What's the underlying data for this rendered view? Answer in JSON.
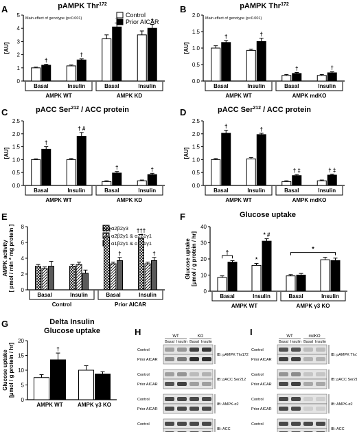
{
  "legend_AB": {
    "items": [
      {
        "label": "Control",
        "fill": "#ffffff"
      },
      {
        "label": "Prior AICAR",
        "fill": "#000000"
      }
    ]
  },
  "legend_E": {
    "items": [
      {
        "label": "α2β2γ3",
        "fill": "#ffffff",
        "pattern": "crosshatch"
      },
      {
        "label": "α2β2γ1 & α2β1γ1",
        "fill": "#ffffff",
        "pattern": "diagonal"
      },
      {
        "label": "α1β2γ1 & α1β1γ1",
        "fill": "#5a5a5a"
      }
    ]
  },
  "chart_data": [
    {
      "panel": "A",
      "type": "bar",
      "title": "pAMPK Thr172",
      "note": "Main effect of genotype (p<0.001)",
      "ylabel": "[AU]",
      "ylim": [
        0,
        5
      ],
      "yticks": [
        0,
        1,
        2,
        3,
        4,
        5
      ],
      "groups": [
        "Basal",
        "Insulin",
        "Basal",
        "Insulin"
      ],
      "supergroups": [
        {
          "label": "AMPK WT",
          "span": [
            0,
            1
          ]
        },
        {
          "label": "AMPK KD",
          "span": [
            2,
            3
          ]
        }
      ],
      "series": [
        {
          "name": "Control",
          "values": [
            1.0,
            1.15,
            3.2,
            3.5
          ],
          "errors": [
            0.06,
            0.07,
            0.3,
            0.3
          ]
        },
        {
          "name": "Prior AICAR",
          "values": [
            1.2,
            1.6,
            4.1,
            4.0
          ],
          "errors": [
            0.07,
            0.08,
            0.3,
            0.3
          ]
        }
      ],
      "annotations": [
        {
          "series": 1,
          "group": 0,
          "text": "†"
        },
        {
          "series": 1,
          "group": 1,
          "text": "†"
        },
        {
          "series": 1,
          "group": 2,
          "text": "†"
        },
        {
          "series": 1,
          "group": 3,
          "text": "†"
        }
      ]
    },
    {
      "panel": "B",
      "type": "bar",
      "title": "pAMPK Thr172",
      "note": "Main effect of genotype (p<0.001)",
      "ylabel": "[AU]",
      "ylim": [
        0,
        2.0
      ],
      "yticks": [
        0.0,
        0.5,
        1.0,
        1.5,
        2.0
      ],
      "groups": [
        "Basal",
        "Insulin",
        "Basal",
        "Insulin"
      ],
      "supergroups": [
        {
          "label": "AMPK WT",
          "span": [
            0,
            1
          ]
        },
        {
          "label": "AMPK mdKO",
          "span": [
            2,
            3
          ]
        }
      ],
      "series": [
        {
          "name": "Control",
          "values": [
            1.0,
            0.93,
            0.17,
            0.17
          ],
          "errors": [
            0.07,
            0.04,
            0.03,
            0.03
          ]
        },
        {
          "name": "Prior AICAR",
          "values": [
            1.17,
            1.2,
            0.23,
            0.25
          ],
          "errors": [
            0.06,
            0.1,
            0.03,
            0.03
          ]
        }
      ],
      "annotations": [
        {
          "series": 1,
          "group": 0,
          "text": "†"
        },
        {
          "series": 1,
          "group": 1,
          "text": "†"
        },
        {
          "series": 1,
          "group": 2,
          "text": "†"
        },
        {
          "series": 1,
          "group": 3,
          "text": "†"
        }
      ]
    },
    {
      "panel": "C",
      "type": "bar",
      "title": "pACC Ser212 / ACC protein",
      "ylabel": "[AU]",
      "ylim": [
        0,
        2.5
      ],
      "yticks": [
        0.0,
        0.5,
        1.0,
        1.5,
        2.0,
        2.5
      ],
      "groups": [
        "Basal",
        "Insulin",
        "Basal",
        "Insulin"
      ],
      "supergroups": [
        {
          "label": "AMPK WT",
          "span": [
            0,
            1
          ]
        },
        {
          "label": "AMPK KD",
          "span": [
            2,
            3
          ]
        }
      ],
      "series": [
        {
          "name": "Control",
          "values": [
            1.0,
            1.0,
            0.15,
            0.18
          ],
          "errors": [
            0.03,
            0.04,
            0.03,
            0.03
          ]
        },
        {
          "name": "Prior AICAR",
          "values": [
            1.4,
            1.9,
            0.48,
            0.42
          ],
          "errors": [
            0.1,
            0.15,
            0.06,
            0.05
          ]
        }
      ],
      "annotations": [
        {
          "series": 1,
          "group": 0,
          "text": "†"
        },
        {
          "series": 1,
          "group": 1,
          "text": "† #"
        },
        {
          "series": 1,
          "group": 2,
          "text": "†"
        },
        {
          "series": 1,
          "group": 3,
          "text": "†"
        }
      ]
    },
    {
      "panel": "D",
      "type": "bar",
      "title": "pACC Ser212 / ACC protein",
      "ylabel": "[AU]",
      "ylim": [
        0,
        2.5
      ],
      "yticks": [
        0.0,
        0.5,
        1.0,
        1.5,
        2.0,
        2.5
      ],
      "groups": [
        "Basal",
        "Insulin",
        "Basal",
        "Insulin"
      ],
      "supergroups": [
        {
          "label": "AMPK WT",
          "span": [
            0,
            1
          ]
        },
        {
          "label": "AMPK mdKO",
          "span": [
            2,
            3
          ]
        }
      ],
      "series": [
        {
          "name": "Control",
          "values": [
            1.0,
            1.03,
            0.15,
            0.18
          ],
          "errors": [
            0.04,
            0.05,
            0.03,
            0.03
          ]
        },
        {
          "name": "Prior AICAR",
          "values": [
            2.02,
            1.97,
            0.38,
            0.4
          ],
          "errors": [
            0.12,
            0.05,
            0.04,
            0.04
          ]
        }
      ],
      "annotations": [
        {
          "series": 1,
          "group": 0,
          "text": "†"
        },
        {
          "series": 1,
          "group": 1,
          "text": "†"
        },
        {
          "series": 1,
          "group": 2,
          "text": "† ‡"
        },
        {
          "series": 1,
          "group": 3,
          "text": "† ‡"
        }
      ]
    },
    {
      "panel": "E",
      "type": "bar",
      "ylabel": "AMPK activity [ pmol / min * mg protein ]",
      "ylim": [
        0,
        8
      ],
      "yticks": [
        0,
        2,
        4,
        6,
        8
      ],
      "groups": [
        "Basal",
        "Insulin",
        "Basal",
        "Insulin"
      ],
      "supergroups": [
        {
          "label": "Control",
          "span": [
            0,
            1
          ]
        },
        {
          "label": "Prior AICAR",
          "span": [
            2,
            3
          ]
        }
      ],
      "series": [
        {
          "name": "α2β2γ3",
          "values": [
            3.0,
            3.0,
            6.7,
            6.5
          ],
          "errors": [
            0.2,
            0.2,
            0.45,
            0.5
          ]
        },
        {
          "name": "α2β2γ1 & α2β1γ1",
          "values": [
            2.7,
            3.2,
            3.3,
            3.3
          ],
          "errors": [
            0.2,
            0.3,
            0.2,
            0.2
          ]
        },
        {
          "name": "α1β2γ1 & α1β1γ1",
          "values": [
            3.0,
            2.1,
            3.7,
            3.7
          ],
          "errors": [
            0.6,
            0.4,
            0.4,
            0.4
          ]
        }
      ],
      "annotations": [
        {
          "series": 0,
          "group": 2,
          "text": "†††"
        },
        {
          "series": 0,
          "group": 3,
          "text": "†††"
        },
        {
          "series": 2,
          "group": 2,
          "text": "†"
        },
        {
          "series": 2,
          "group": 3,
          "text": "†"
        }
      ]
    },
    {
      "panel": "F",
      "type": "bar",
      "title": "Glucose uptake",
      "ylabel": "Glucose uptake [μmol / g protein / hr]",
      "ylim": [
        0,
        40
      ],
      "yticks": [
        0,
        10,
        20,
        30,
        40
      ],
      "groups": [
        "Basal",
        "Insulin",
        "Basal",
        "Insulin"
      ],
      "supergroups": [
        {
          "label": "AMPK WT",
          "span": [
            0,
            1
          ]
        },
        {
          "label": "AMPK γ3 KO",
          "span": [
            2,
            3
          ]
        }
      ],
      "series": [
        {
          "name": "Control",
          "values": [
            8.5,
            16.0,
            9.5,
            19.5
          ],
          "errors": [
            1.0,
            1.2,
            0.8,
            1.5
          ]
        },
        {
          "name": "Prior AICAR",
          "values": [
            18.0,
            31.0,
            10.0,
            19.0
          ],
          "errors": [
            1.0,
            1.5,
            1.0,
            1.5
          ]
        }
      ],
      "annotations": [
        {
          "series": 0,
          "group": 1,
          "text": "*"
        },
        {
          "series": 1,
          "group": 1,
          "text": "* #"
        }
      ],
      "brackets": [
        {
          "from": [
            0,
            0
          ],
          "to": [
            1,
            0
          ],
          "y": 22,
          "text": "†"
        },
        {
          "from": [
            0,
            2
          ],
          "to": [
            1,
            3
          ],
          "y": 24,
          "text": "*"
        }
      ]
    },
    {
      "panel": "G",
      "type": "bar",
      "title": "Delta Insulin",
      "subtitle": "Glucose uptake",
      "ylabel": "Glucose uptake [μmol / g protein / hr]",
      "ylim": [
        0,
        20
      ],
      "yticks": [
        0,
        5,
        10,
        15,
        20
      ],
      "groups": [
        "AMPK WT",
        "AMPK γ3 KO"
      ],
      "series": [
        {
          "name": "Control",
          "values": [
            7.5,
            10.0
          ],
          "errors": [
            1.0,
            1.5
          ]
        },
        {
          "name": "Prior AICAR",
          "values": [
            13.5,
            8.7
          ],
          "errors": [
            2.3,
            0.8
          ]
        }
      ],
      "annotations": [
        {
          "series": 1,
          "group": 0,
          "text": "†"
        }
      ]
    }
  ],
  "blots_H": {
    "header_groups": [
      "WT",
      "KO"
    ],
    "header_cols": [
      "Basal",
      "Insulin",
      "Basal",
      "Insulin"
    ],
    "rows": [
      {
        "conds": [
          "Control",
          "Prior AICAR"
        ],
        "label": "IB: pAMPK Thr172",
        "intens": [
          [
            0.35,
            0.4,
            0.85,
            0.9
          ],
          [
            0.45,
            0.55,
            0.95,
            0.95
          ]
        ]
      },
      {
        "conds": [
          "Control",
          "Prior AICAR"
        ],
        "label": "IB: pACC Ser212",
        "intens": [
          [
            0.35,
            0.4,
            0.2,
            0.25
          ],
          [
            0.75,
            0.85,
            0.35,
            0.35
          ]
        ]
      },
      {
        "conds": [
          "Control",
          "Prior AICAR"
        ],
        "label": "IB: AMPK-α2",
        "intens": [
          [
            0.8,
            0.8,
            0.8,
            0.8
          ],
          [
            0.8,
            0.8,
            0.8,
            0.8
          ]
        ]
      },
      {
        "conds": [
          "Control",
          "Prior AICAR"
        ],
        "label": "IB: ACC",
        "intens": [
          [
            0.8,
            0.8,
            0.8,
            0.8
          ],
          [
            0.8,
            0.8,
            0.8,
            0.8
          ]
        ]
      }
    ]
  },
  "blots_I": {
    "header_groups": [
      "WT",
      "mdKO"
    ],
    "header_cols": [
      "Basal",
      "Insulin",
      "Basal",
      "Insulin"
    ],
    "rows": [
      {
        "conds": [
          "Control",
          "Prior AICAR"
        ],
        "label": "IB: pAMPK Thr172",
        "intens": [
          [
            0.75,
            0.75,
            0.2,
            0.2
          ],
          [
            0.85,
            0.85,
            0.25,
            0.25
          ]
        ]
      },
      {
        "conds": [
          "Control",
          "Prior AICAR"
        ],
        "label": "IB: pACC Ser212",
        "intens": [
          [
            0.4,
            0.45,
            0.15,
            0.15
          ],
          [
            0.8,
            0.85,
            0.3,
            0.3
          ]
        ]
      },
      {
        "conds": [
          "Control",
          "Prior AICAR"
        ],
        "label": "IB: AMPK-α2",
        "intens": [
          [
            0.8,
            0.8,
            0.1,
            0.1
          ],
          [
            0.8,
            0.8,
            0.1,
            0.1
          ]
        ]
      },
      {
        "conds": [
          "Control",
          "Prior AICAR"
        ],
        "label": "IB: ACC",
        "intens": [
          [
            0.8,
            0.8,
            0.8,
            0.8
          ],
          [
            0.8,
            0.8,
            0.8,
            0.8
          ]
        ]
      }
    ]
  }
}
